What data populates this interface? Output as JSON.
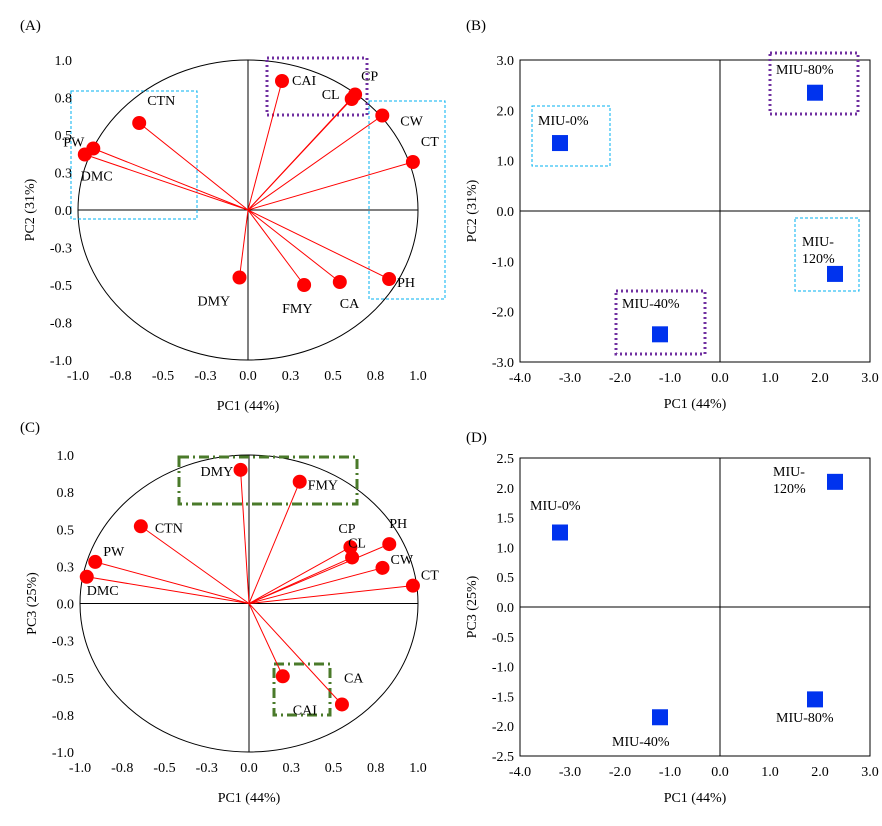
{
  "colors": {
    "vector": "#ff0000",
    "point": "#ff0000",
    "square": "#0033ee",
    "purple_box": "#7030a0",
    "cyan_box": "#00b0f0",
    "green_box": "#4a7a2a"
  },
  "chart_data": [
    {
      "panel": "(A)",
      "type": "scatter",
      "subtype": "correlation-circle",
      "xlabel": "PC1 (44%)",
      "ylabel": "PC2 (31%)",
      "xlim": [
        -1.0,
        1.0
      ],
      "ylim": [
        -1.0,
        1.0
      ],
      "xticks": [
        "-1.0",
        "-0.8",
        "-0.5",
        "-0.3",
        "0.0",
        "0.3",
        "0.5",
        "0.8",
        "1.0"
      ],
      "yticks": [
        "1.0",
        "0.8",
        "0.5",
        "0.3",
        "0.0",
        "-0.3",
        "-0.5",
        "-0.8",
        "-1.0"
      ],
      "points": [
        {
          "label": "CAI",
          "x": 0.2,
          "y": 0.86
        },
        {
          "label": "CP",
          "x": 0.63,
          "y": 0.77
        },
        {
          "label": "CL",
          "x": 0.61,
          "y": 0.74
        },
        {
          "label": "CW",
          "x": 0.79,
          "y": 0.63
        },
        {
          "label": "CT",
          "x": 0.97,
          "y": 0.32
        },
        {
          "label": "PH",
          "x": 0.83,
          "y": -0.46
        },
        {
          "label": "CA",
          "x": 0.54,
          "y": -0.48
        },
        {
          "label": "FMY",
          "x": 0.33,
          "y": -0.5
        },
        {
          "label": "DMY",
          "x": -0.05,
          "y": -0.45
        },
        {
          "label": "DMC",
          "x": -0.96,
          "y": 0.37
        },
        {
          "label": "PW",
          "x": -0.91,
          "y": 0.41
        },
        {
          "label": "CTN",
          "x": -0.64,
          "y": 0.58
        }
      ]
    },
    {
      "panel": "(B)",
      "type": "scatter",
      "xlabel": "PC1 (44%)",
      "ylabel": "PC2 (31%)",
      "xlim": [
        -4.0,
        3.0
      ],
      "ylim": [
        -3.0,
        3.0
      ],
      "xticks": [
        "-4.0",
        "-3.0",
        "-2.0",
        "-1.0",
        "0.0",
        "1.0",
        "2.0",
        "3.0"
      ],
      "yticks": [
        "3.0",
        "2.0",
        "1.0",
        "0.0",
        "-1.0",
        "-2.0",
        "-3.0"
      ],
      "points": [
        {
          "label": "MIU-0%",
          "x": -3.2,
          "y": 1.35
        },
        {
          "label": "MIU-80%",
          "x": 1.9,
          "y": 2.35
        },
        {
          "label": "MIU-120%",
          "x": 2.3,
          "y": -1.25
        },
        {
          "label": "MIU-40%",
          "x": -1.2,
          "y": -2.45
        }
      ]
    },
    {
      "panel": "(C)",
      "type": "scatter",
      "subtype": "correlation-circle",
      "xlabel": "PC1 (44%)",
      "ylabel": "PC3 (25%)",
      "xlim": [
        -1.0,
        1.0
      ],
      "ylim": [
        -1.0,
        1.0
      ],
      "xticks": [
        "-1.0",
        "-0.8",
        "-0.5",
        "-0.3",
        "0.0",
        "0.3",
        "0.5",
        "0.8",
        "1.0"
      ],
      "yticks": [
        "1.0",
        "0.8",
        "0.5",
        "0.3",
        "0.0",
        "-0.3",
        "-0.5",
        "-0.8",
        "-1.0"
      ],
      "points": [
        {
          "label": "DMY",
          "x": -0.05,
          "y": 0.9
        },
        {
          "label": "FMY",
          "x": 0.3,
          "y": 0.82
        },
        {
          "label": "CTN",
          "x": -0.64,
          "y": 0.52
        },
        {
          "label": "CP",
          "x": 0.6,
          "y": 0.38
        },
        {
          "label": "PH",
          "x": 0.83,
          "y": 0.4
        },
        {
          "label": "CL",
          "x": 0.61,
          "y": 0.31
        },
        {
          "label": "CW",
          "x": 0.79,
          "y": 0.24
        },
        {
          "label": "CT",
          "x": 0.97,
          "y": 0.12
        },
        {
          "label": "PW",
          "x": -0.91,
          "y": 0.28
        },
        {
          "label": "DMC",
          "x": -0.96,
          "y": 0.18
        },
        {
          "label": "CAI",
          "x": 0.2,
          "y": -0.49
        },
        {
          "label": "CA",
          "x": 0.55,
          "y": -0.68
        }
      ]
    },
    {
      "panel": "(D)",
      "type": "scatter",
      "xlabel": "PC1 (44%)",
      "ylabel": "PC3 (25%)",
      "xlim": [
        -4.0,
        3.0
      ],
      "ylim": [
        -2.5,
        2.5
      ],
      "xticks": [
        "-4.0",
        "-3.0",
        "-2.0",
        "-1.0",
        "0.0",
        "1.0",
        "2.0",
        "3.0"
      ],
      "yticks": [
        "2.5",
        "2.0",
        "1.5",
        "1.0",
        "0.5",
        "0.0",
        "-0.5",
        "-1.0",
        "-1.5",
        "-2.0",
        "-2.5"
      ],
      "points": [
        {
          "label": "MIU-0%",
          "x": -3.2,
          "y": 1.25
        },
        {
          "label": "MIU-120%",
          "x": 2.3,
          "y": 2.1
        },
        {
          "label": "MIU-80%",
          "x": 1.9,
          "y": -1.55
        },
        {
          "label": "MIU-40%",
          "x": -1.2,
          "y": -1.85
        }
      ]
    }
  ]
}
